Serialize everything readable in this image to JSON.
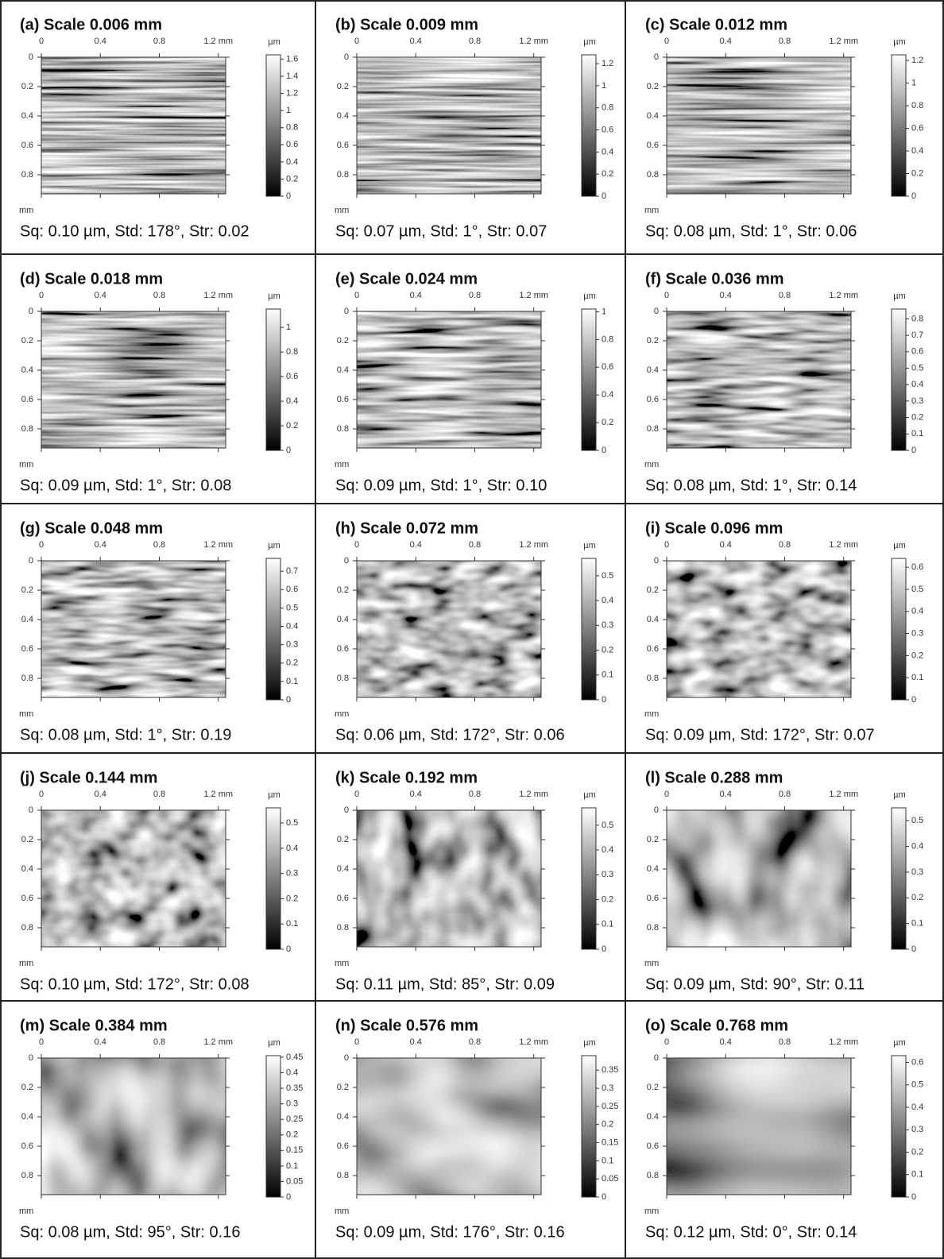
{
  "x_axis": {
    "lim": [
      0,
      1.25
    ],
    "ticks": [
      0,
      0.4,
      0.8,
      {
        "value": 1.2,
        "label": "1.2 mm"
      }
    ]
  },
  "y_axis": {
    "lim": [
      0,
      0.93
    ],
    "ticks": [
      0,
      0.2,
      0.4,
      0.6,
      0.8
    ],
    "unit": "mm"
  },
  "colorbar_unit": "µm",
  "panels": [
    {
      "title": "(a) Scale 0.006 mm",
      "colorbar": {
        "lim": [
          0,
          1.65
        ],
        "ticks": [
          0,
          0.2,
          0.4,
          0.6,
          0.8,
          1,
          1.2,
          1.4,
          1.6
        ]
      },
      "stats": "Sq: 0.10 µm, Std: 178°, Str: 0.02"
    },
    {
      "title": "(b) Scale 0.009 mm",
      "colorbar": {
        "lim": [
          0,
          1.28
        ],
        "ticks": [
          0,
          0.2,
          0.4,
          0.6,
          0.8,
          1,
          1.2
        ]
      },
      "stats": "Sq: 0.07 µm, Std: 1°, Str: 0.07"
    },
    {
      "title": "(c) Scale 0.012 mm",
      "colorbar": {
        "lim": [
          0,
          1.25
        ],
        "ticks": [
          0,
          0.2,
          0.4,
          0.6,
          0.8,
          1,
          1.2
        ]
      },
      "stats": "Sq: 0.08 µm, Std: 1°, Str: 0.06"
    },
    {
      "title": "(d) Scale 0.018 mm",
      "colorbar": {
        "lim": [
          0,
          1.15
        ],
        "ticks": [
          0,
          0.2,
          0.4,
          0.6,
          0.8,
          1
        ]
      },
      "stats": "Sq: 0.09 µm, Std: 1°, Str: 0.08"
    },
    {
      "title": "(e) Scale 0.024 mm",
      "colorbar": {
        "lim": [
          0,
          1.02
        ],
        "ticks": [
          0,
          0.2,
          0.4,
          0.6,
          0.8,
          1
        ]
      },
      "stats": "Sq: 0.09 µm, Std: 1°, Str: 0.10"
    },
    {
      "title": "(f) Scale 0.036 mm",
      "colorbar": {
        "lim": [
          0,
          0.86
        ],
        "ticks": [
          0,
          0.1,
          0.2,
          0.3,
          0.4,
          0.5,
          0.6,
          0.7,
          0.8
        ]
      },
      "stats": "Sq: 0.08 µm, Std: 1°, Str: 0.14"
    },
    {
      "title": "(g) Scale 0.048 mm",
      "colorbar": {
        "lim": [
          0,
          0.77
        ],
        "ticks": [
          0,
          0.1,
          0.2,
          0.3,
          0.4,
          0.5,
          0.6,
          0.7
        ]
      },
      "stats": "Sq: 0.08 µm, Std: 1°, Str: 0.19"
    },
    {
      "title": "(h) Scale 0.072 mm",
      "colorbar": {
        "lim": [
          0,
          0.57
        ],
        "ticks": [
          0,
          0.1,
          0.2,
          0.3,
          0.4,
          0.5
        ]
      },
      "stats": "Sq: 0.06 µm, Std: 172°, Str: 0.06"
    },
    {
      "title": "(i) Scale 0.096 mm",
      "colorbar": {
        "lim": [
          0,
          0.64
        ],
        "ticks": [
          0,
          0.1,
          0.2,
          0.3,
          0.4,
          0.5,
          0.6
        ]
      },
      "stats": "Sq: 0.09 µm, Std: 172°, Str: 0.07"
    },
    {
      "title": "(j) Scale 0.144 mm",
      "colorbar": {
        "lim": [
          0,
          0.56
        ],
        "ticks": [
          0,
          0.1,
          0.2,
          0.3,
          0.4,
          0.5
        ]
      },
      "stats": "Sq: 0.10 µm, Std: 172°, Str: 0.08"
    },
    {
      "title": "(k) Scale 0.192 mm",
      "colorbar": {
        "lim": [
          0,
          0.57
        ],
        "ticks": [
          0,
          0.1,
          0.2,
          0.3,
          0.4,
          0.5
        ]
      },
      "stats": "Sq: 0.11 µm, Std: 85°, Str: 0.09"
    },
    {
      "title": "(l) Scale 0.288 mm",
      "colorbar": {
        "lim": [
          0,
          0.55
        ],
        "ticks": [
          0,
          0.1,
          0.2,
          0.3,
          0.4,
          0.5
        ]
      },
      "stats": "Sq: 0.09 µm, Std: 90°, Str: 0.11"
    },
    {
      "title": "(m) Scale 0.384 mm",
      "colorbar": {
        "lim": [
          0,
          0.455
        ],
        "ticks": [
          0,
          0.05,
          0.1,
          0.15,
          0.2,
          0.25,
          0.3,
          0.35,
          0.4,
          0.45
        ]
      },
      "stats": "Sq: 0.08 µm, Std: 95°, Str: 0.16"
    },
    {
      "title": "(n) Scale 0.576 mm",
      "colorbar": {
        "lim": [
          0,
          0.39
        ],
        "ticks": [
          0,
          0.05,
          0.1,
          0.15,
          0.2,
          0.25,
          0.3,
          0.35
        ]
      },
      "stats": "Sq: 0.09 µm, Std: 176°, Str: 0.16"
    },
    {
      "title": "(o) Scale 0.768 mm",
      "colorbar": {
        "lim": [
          0,
          0.63
        ],
        "ticks": [
          0,
          0.1,
          0.2,
          0.3,
          0.4,
          0.5,
          0.6
        ]
      },
      "stats": "Sq: 0.12 µm, Std: 0°, Str: 0.14"
    }
  ]
}
